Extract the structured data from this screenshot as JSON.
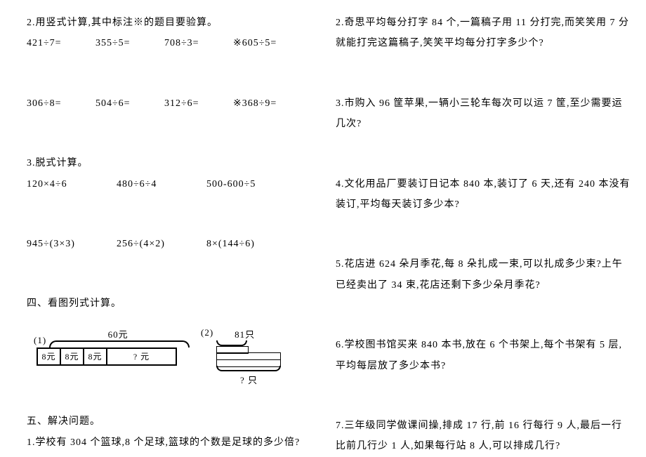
{
  "colors": {
    "bg": "#ffffff",
    "text": "#000000"
  },
  "typography": {
    "font_family": "SimSun",
    "body_fontsize": 14,
    "figure_fontsize": 12
  },
  "left": {
    "s2": {
      "title": "2.用竖式计算,其中标注※的题目要验算。",
      "row1": [
        "421÷7=",
        "355÷5=",
        "708÷3=",
        "※605÷5="
      ],
      "row2": [
        "306÷8=",
        "504÷6=",
        "312÷6=",
        "※368÷9="
      ]
    },
    "s3": {
      "title": "3.脱式计算。",
      "row1": [
        "120×4÷6",
        "480÷6÷4",
        "500-600÷5"
      ],
      "row2": [
        "945÷(3×3)",
        "256÷(4×2)",
        "8×(144÷6)"
      ]
    },
    "s4": {
      "title": "四、看图列式计算。"
    },
    "fig1": {
      "num": "(1)",
      "total": "60元",
      "cells": [
        "8元",
        "8元",
        "8元",
        "? 元"
      ]
    },
    "fig2": {
      "num": "(2)",
      "top": "81只",
      "bottom": "? 只"
    },
    "s5": {
      "title": "五、解决问题。"
    },
    "q1": "1.学校有 304 个篮球,8 个足球,篮球的个数是足球的多少倍?"
  },
  "right": {
    "q2": "2.奇思平均每分打字 84 个,一篇稿子用 11 分打完,而笑笑用 7 分就能打完这篇稿子,笑笑平均每分打字多少个?",
    "q3": "3.市购入 96 筐苹果,一辆小三轮车每次可以运 7 筐,至少需要运几次?",
    "q4": "4.文化用品厂要装订日记本 840 本,装订了 6 天,还有 240 本没有装订,平均每天装订多少本?",
    "q5": "5.花店进 624 朵月季花,每 8 朵扎成一束,可以扎成多少束?上午已经卖出了 34 束,花店还剩下多少朵月季花?",
    "q6": "6.学校图书馆买来 840 本书,放在 6 个书架上,每个书架有 5 层,平均每层放了多少本书?",
    "q7": "7.三年级同学做课间操,排成 17 行,前 16 行每行 9 人,最后一行比前几行少 1 人,如果每行站 8 人,可以排成几行?"
  }
}
